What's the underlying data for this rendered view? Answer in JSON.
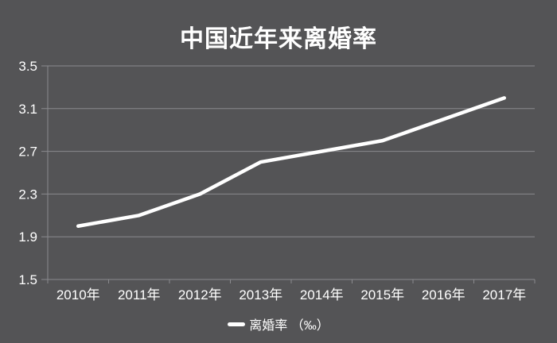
{
  "chart_data": {
    "type": "line",
    "title": "中国近年来离婚率",
    "categories": [
      "2010年",
      "2011年",
      "2012年",
      "2013年",
      "2014年",
      "2015年",
      "2016年",
      "2017年"
    ],
    "series": [
      {
        "name": "离婚率",
        "values": [
          2.0,
          2.1,
          2.3,
          2.6,
          2.7,
          2.8,
          3.0,
          3.2
        ]
      }
    ],
    "legend_label": "离婚率 （‰）",
    "legend_position": "bottom",
    "unit": "‰",
    "ylim": [
      1.5,
      3.5
    ],
    "y_ticks": [
      1.5,
      1.9,
      2.3,
      2.7,
      3.1,
      3.5
    ],
    "y_tick_labels": [
      "1.5",
      "1.9",
      "2.3",
      "2.7",
      "3.1",
      "3.5"
    ],
    "grid": "horizontal",
    "colors": {
      "background": "#545456",
      "grid": "#8a8a8e",
      "axis": "#8a8a8e",
      "line": "#ffffff",
      "text": "#ffffff"
    }
  }
}
